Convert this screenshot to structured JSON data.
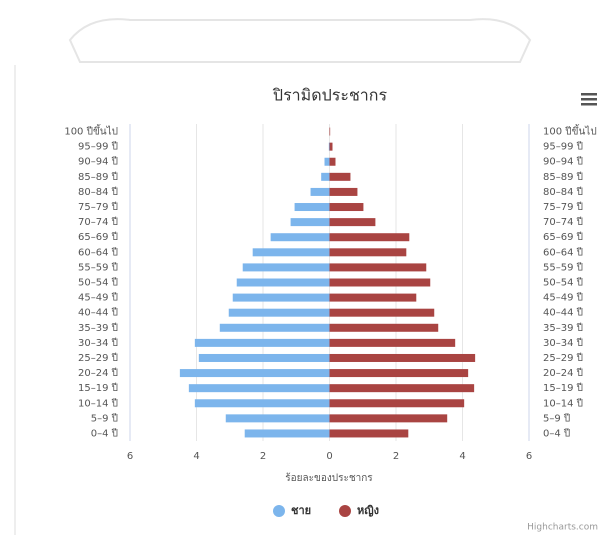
{
  "chart_data": {
    "type": "bar",
    "orientation": "horizontal",
    "title": "ปิรามิดประชากร",
    "x_axis_label": "ร้อยละของประชากร",
    "credit": "Highcharts.com",
    "categories": [
      "100 ปีขึ้นไป",
      "95–99 ปี",
      "90–94 ปี",
      "85–89 ปี",
      "80–84 ปี",
      "75–79 ปี",
      "70–74 ปี",
      "65–69 ปี",
      "60–64 ปี",
      "55–59 ปี",
      "50–54 ปี",
      "45–49 ปี",
      "40–44 ปี",
      "35–39 ปี",
      "30–34 ปี",
      "25–29 ปี",
      "20–24 ปี",
      "15–19 ปี",
      "10–14 ปี",
      "5–9 ปี",
      "0–4 ปี"
    ],
    "series": [
      {
        "name": "ชาย",
        "color": "#7cb5ec",
        "values": [
          0,
          -0.02,
          -0.15,
          -0.25,
          -0.57,
          -1.05,
          -1.17,
          -1.77,
          -2.31,
          -2.61,
          -2.79,
          -2.91,
          -3.03,
          -3.3,
          -4.05,
          -3.93,
          -4.5,
          -4.23,
          -4.05,
          -3.12,
          -2.55
        ]
      },
      {
        "name": "หญิง",
        "color": "#a94442",
        "values": [
          0.02,
          0.09,
          0.18,
          0.63,
          0.84,
          1.02,
          1.38,
          2.4,
          2.31,
          2.91,
          3.03,
          2.61,
          3.15,
          3.27,
          3.78,
          4.38,
          4.17,
          4.35,
          4.05,
          3.54,
          2.37
        ]
      }
    ],
    "xlim": [
      -6,
      6
    ],
    "xticks": [
      {
        "value": -6,
        "label": "6"
      },
      {
        "value": -4,
        "label": "4"
      },
      {
        "value": -2,
        "label": "2"
      },
      0,
      2,
      4,
      6
    ],
    "grid": true
  }
}
